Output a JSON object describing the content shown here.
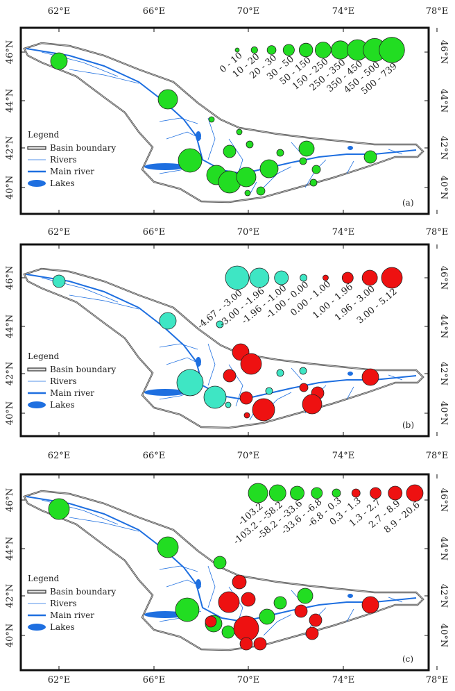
{
  "x_ticks": [
    "62°E",
    "66°E",
    "70°E",
    "74°E",
    "78°E"
  ],
  "y_ticks": [
    "46°N",
    "44°N",
    "42°N",
    "40°N"
  ],
  "legend": {
    "title": "Legend",
    "items": [
      "Basin boundary",
      "Rivers",
      "Main river",
      "Lakes"
    ]
  },
  "panels": [
    {
      "label": "(a)",
      "classes": [
        "0 - 10",
        "10 - 20",
        "20 - 30",
        "30 - 50",
        "50 - 150",
        "150 - 250",
        "250 - 350",
        "350 - 450",
        "450 - 500",
        "500 - 739"
      ],
      "colors": [
        "#22dd22",
        "#22dd22",
        "#22dd22",
        "#22dd22",
        "#22dd22",
        "#22dd22",
        "#22dd22",
        "#22dd22",
        "#22dd22",
        "#22dd22"
      ]
    },
    {
      "label": "(b)",
      "classes": [
        "-4.67 - -3.00",
        "-3.00 - -1.96",
        "-1.96 - -1.00",
        "-1.00 - 0.00",
        "0.00 - 1.00",
        "1.00 - 1.96",
        "1.96 - 3.00",
        "3.00 - 5.12"
      ],
      "colors": [
        "#3ee6c4",
        "#3ee6c4",
        "#3ee6c4",
        "#3ee6c4",
        "#ee1111",
        "#ee1111",
        "#ee1111",
        "#ee1111"
      ]
    },
    {
      "label": "(c)",
      "classes": [
        "-103.2",
        "-103.2 - -58.2",
        "-58.2 - -33.6",
        "-33.6 - -6.8",
        "-6.8 - 0.3",
        "0.3 - 1.3",
        "1.3 - 2.7",
        "2.7 - 8.9",
        "8.9 - 20.6"
      ],
      "colors": [
        "#22dd22",
        "#22dd22",
        "#22dd22",
        "#22dd22",
        "#22dd22",
        "#ee1111",
        "#ee1111",
        "#ee1111",
        "#ee1111"
      ]
    }
  ]
}
